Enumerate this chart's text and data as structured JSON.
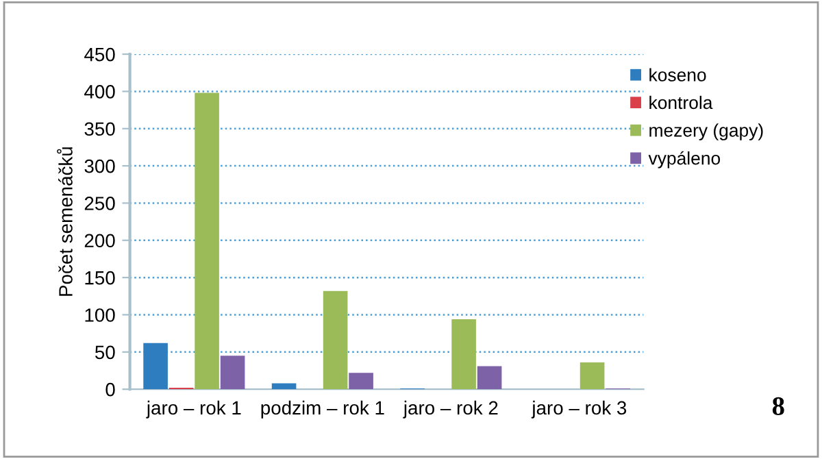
{
  "chart_data": {
    "type": "bar",
    "ylabel": "Počet semenáčků",
    "categories": [
      "jaro – rok 1",
      "podzim – rok 1",
      "jaro – rok 2",
      "jaro – rok 3"
    ],
    "series": [
      {
        "name": "koseno",
        "color": "#2e7ebf",
        "values": [
          62,
          8,
          1,
          0
        ]
      },
      {
        "name": "kontrola",
        "color": "#d9404a",
        "values": [
          2,
          0,
          0,
          0
        ]
      },
      {
        "name": "mezery (gapy)",
        "color": "#9bbb59",
        "values": [
          398,
          132,
          94,
          36
        ]
      },
      {
        "name": "vypáleno",
        "color": "#7e62a8",
        "values": [
          45,
          22,
          31,
          1
        ]
      }
    ],
    "ylim": [
      0,
      450
    ],
    "yticks": [
      0,
      50,
      100,
      150,
      200,
      250,
      300,
      350,
      400,
      450
    ],
    "grid": "y",
    "legend": "top right",
    "annotations": [
      "8"
    ]
  }
}
